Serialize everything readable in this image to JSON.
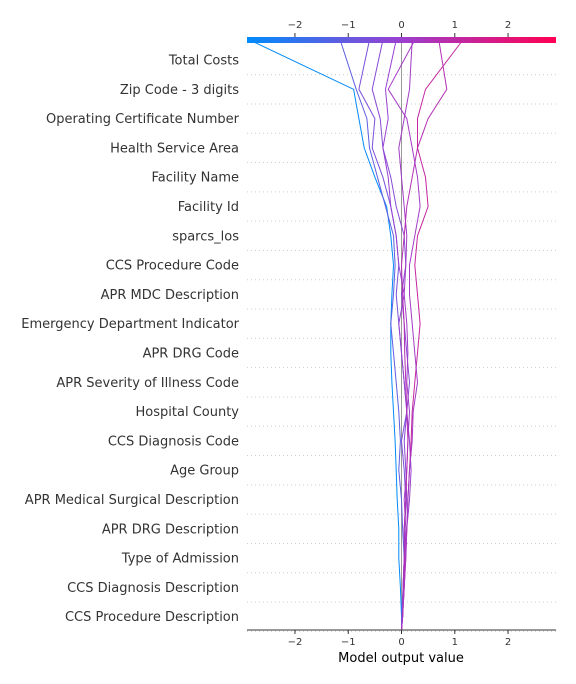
{
  "chart_data": {
    "type": "line",
    "subtype": "shap-decision-plot",
    "xlabel": "Model output value",
    "xlim": [
      -2.9,
      2.9
    ],
    "xticks": [
      -2,
      -1,
      0,
      1,
      2
    ],
    "xtick_labels": [
      "−2",
      "−1",
      "0",
      "1",
      "2"
    ],
    "base_value": 0.0,
    "colorbar": {
      "position": "top",
      "colors": [
        "#008bfb",
        "#9b3fd0",
        "#ff0052"
      ],
      "range": [
        -2.9,
        2.9
      ]
    },
    "grid": "dotted horizontal",
    "features": [
      "Total Costs",
      "Zip Code - 3 digits",
      "Operating Certificate Number",
      "Health Service Area",
      "Facility Name",
      "Facility Id",
      "sparcs_los",
      "CCS Procedure Code",
      "APR MDC Description",
      "Emergency Department Indicator",
      "APR DRG Code",
      "APR Severity of Illness Code",
      "Hospital County",
      "CCS Diagnosis Code",
      "Age Group",
      "APR Medical Surgical Description",
      "APR DRG Description",
      "Type of Admission",
      "CCS Diagnosis Description",
      "CCS Procedure Description"
    ],
    "series_note": "values listed from bottom feature (CCS Procedure Description) to top (Total Costs), plus final output",
    "series": [
      {
        "final": -2.85,
        "values": [
          0,
          0,
          -0.02,
          -0.05,
          -0.05,
          -0.08,
          -0.1,
          -0.12,
          -0.15,
          -0.18,
          -0.2,
          -0.2,
          -0.18,
          -0.15,
          -0.2,
          -0.28,
          -0.5,
          -0.7,
          -0.8,
          -0.9,
          -2.85
        ]
      },
      {
        "final": -1.15,
        "values": [
          0,
          0,
          0.03,
          0.05,
          0.02,
          0.0,
          -0.05,
          -0.02,
          -0.05,
          -0.1,
          -0.15,
          -0.2,
          -0.15,
          -0.12,
          -0.15,
          -0.3,
          -0.45,
          -0.6,
          -0.65,
          -0.85,
          -1.15
        ]
      },
      {
        "final": -0.6,
        "values": [
          0,
          0.02,
          0.03,
          0.05,
          0.05,
          0.08,
          0.05,
          0.0,
          0.1,
          0.05,
          0.0,
          -0.05,
          -0.1,
          -0.05,
          -0.1,
          -0.2,
          -0.35,
          -0.55,
          -0.5,
          -0.8,
          -0.6
        ]
      },
      {
        "final": -0.35,
        "values": [
          0,
          0.02,
          0.05,
          0.07,
          0.05,
          0.1,
          0.08,
          0.05,
          0.1,
          0.15,
          0.1,
          0.05,
          0.0,
          0.08,
          0.05,
          -0.1,
          -0.2,
          -0.35,
          -0.4,
          -0.55,
          -0.35
        ]
      },
      {
        "final": -0.1,
        "values": [
          0,
          0.02,
          0.03,
          0.05,
          0.1,
          0.15,
          0.18,
          0.15,
          0.1,
          0.05,
          0.0,
          -0.05,
          0.05,
          -0.05,
          -0.1,
          -0.2,
          -0.25,
          -0.35,
          -0.25,
          -0.3,
          -0.1
        ]
      },
      {
        "final": 0.2,
        "values": [
          0,
          0.02,
          0.03,
          0.05,
          0.08,
          0.05,
          0.1,
          0.12,
          0.15,
          0.1,
          0.12,
          0.1,
          0.05,
          0.08,
          0.1,
          0.05,
          0.0,
          -0.05,
          0.05,
          0.15,
          0.2
        ]
      },
      {
        "final": 0.7,
        "values": [
          0,
          0.02,
          0.04,
          0.06,
          0.05,
          0.08,
          0.1,
          0.12,
          0.1,
          0.08,
          0.06,
          0.05,
          0.02,
          0.0,
          0.05,
          0.1,
          0.2,
          0.3,
          0.5,
          0.85,
          0.7
        ]
      },
      {
        "final": 1.15,
        "values": [
          0,
          0.02,
          0.05,
          0.08,
          0.1,
          0.12,
          0.15,
          0.18,
          0.2,
          0.25,
          0.3,
          0.35,
          0.3,
          0.25,
          0.3,
          0.5,
          0.45,
          0.3,
          0.3,
          0.45,
          1.15
        ]
      },
      {
        "final": 0.25,
        "values": [
          0,
          0.02,
          0.05,
          0.08,
          0.1,
          0.12,
          0.15,
          0.2,
          0.22,
          0.3,
          0.25,
          0.2,
          0.15,
          0.15,
          0.25,
          0.35,
          0.3,
          0.2,
          0.1,
          -0.25,
          0.25
        ]
      }
    ]
  }
}
